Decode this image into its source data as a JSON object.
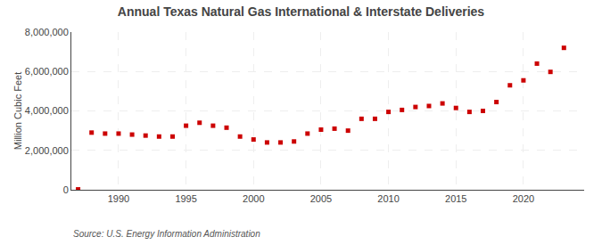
{
  "chart_data": {
    "type": "scatter",
    "title": "Annual Texas Natural Gas International & Interstate Deliveries",
    "ylabel": "Million Cubic Feet",
    "annotations": [
      "Source: U.S. Energy Information Administration"
    ],
    "x": [
      1987,
      1988,
      1989,
      1990,
      1991,
      1992,
      1993,
      1994,
      1995,
      1996,
      1997,
      1998,
      1999,
      2000,
      2001,
      2002,
      2003,
      2004,
      2005,
      2006,
      2007,
      2008,
      2009,
      2010,
      2011,
      2012,
      2013,
      2014,
      2015,
      2016,
      2017,
      2018,
      2019,
      2020,
      2021,
      2022,
      2023
    ],
    "values": [
      20000,
      2900000,
      2850000,
      2850000,
      2800000,
      2750000,
      2700000,
      2700000,
      3250000,
      3400000,
      3250000,
      3150000,
      2700000,
      2550000,
      2400000,
      2400000,
      2450000,
      2850000,
      3050000,
      3100000,
      3000000,
      3600000,
      3600000,
      3950000,
      4050000,
      4200000,
      4250000,
      4380000,
      4150000,
      3950000,
      4000000,
      4450000,
      5300000,
      5550000,
      6400000,
      5980000,
      7200000
    ],
    "color": "#cc0000",
    "marker": "square",
    "xlim": [
      1986.5,
      2024.5
    ],
    "ylim": [
      0,
      8000000
    ],
    "xticks": [
      1990,
      1995,
      2000,
      2005,
      2010,
      2015,
      2020
    ],
    "yticks": [
      0,
      {
        "value": 2000000,
        "label": "2,000,000"
      },
      {
        "value": 4000000,
        "label": "4,000,000"
      },
      {
        "value": 6000000,
        "label": "6,000,000"
      },
      {
        "value": 8000000,
        "label": "8,000,000"
      }
    ],
    "grid": true
  }
}
